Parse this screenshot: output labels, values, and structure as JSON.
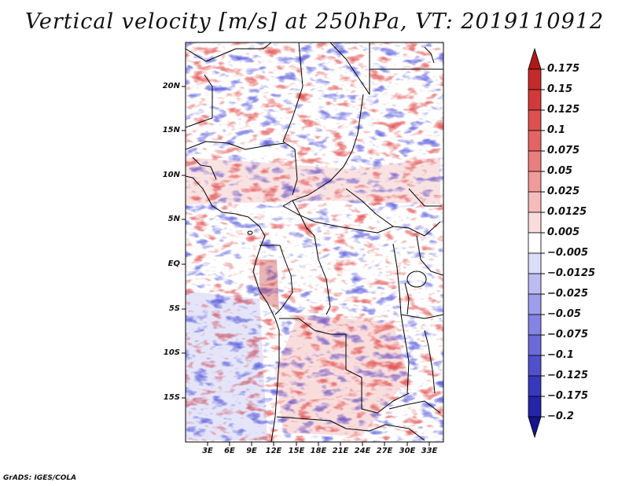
{
  "title": "Vertical velocity [m/s] at 250hPa, VT: 2019110912",
  "credit": "GrADS: IGES/COLA",
  "map": {
    "variable": "Vertical velocity",
    "units": "m/s",
    "level": "250hPa",
    "valid_time": "2019110912",
    "lat_labels": [
      "20N",
      "15N",
      "10N",
      "5N",
      "EQ",
      "5S",
      "10S",
      "15S"
    ],
    "lon_labels": [
      "3E",
      "6E",
      "9E",
      "12E",
      "15E",
      "18E",
      "21E",
      "24E",
      "27E",
      "30E",
      "33E"
    ]
  },
  "colorbar": {
    "levels": [
      "0.175",
      "0.15",
      "0.125",
      "0.1",
      "0.075",
      "0.05",
      "0.025",
      "0.0125",
      "0.005",
      "−0.005",
      "−0.0125",
      "−0.025",
      "−0.05",
      "−0.075",
      "−0.1",
      "−0.125",
      "−0.175",
      "−0.2"
    ],
    "colors": [
      "#b01818",
      "#c42a2a",
      "#d23a3a",
      "#dd5050",
      "#e46464",
      "#ea7e7e",
      "#f09a9a",
      "#f6bcbc",
      "#fbdcdc",
      "#ffffff",
      "#dcdcfb",
      "#bcbcf3",
      "#9e9eea",
      "#8484e4",
      "#6a6ad8",
      "#5050cc",
      "#3838bc",
      "#2424a8",
      "#141490"
    ]
  }
}
